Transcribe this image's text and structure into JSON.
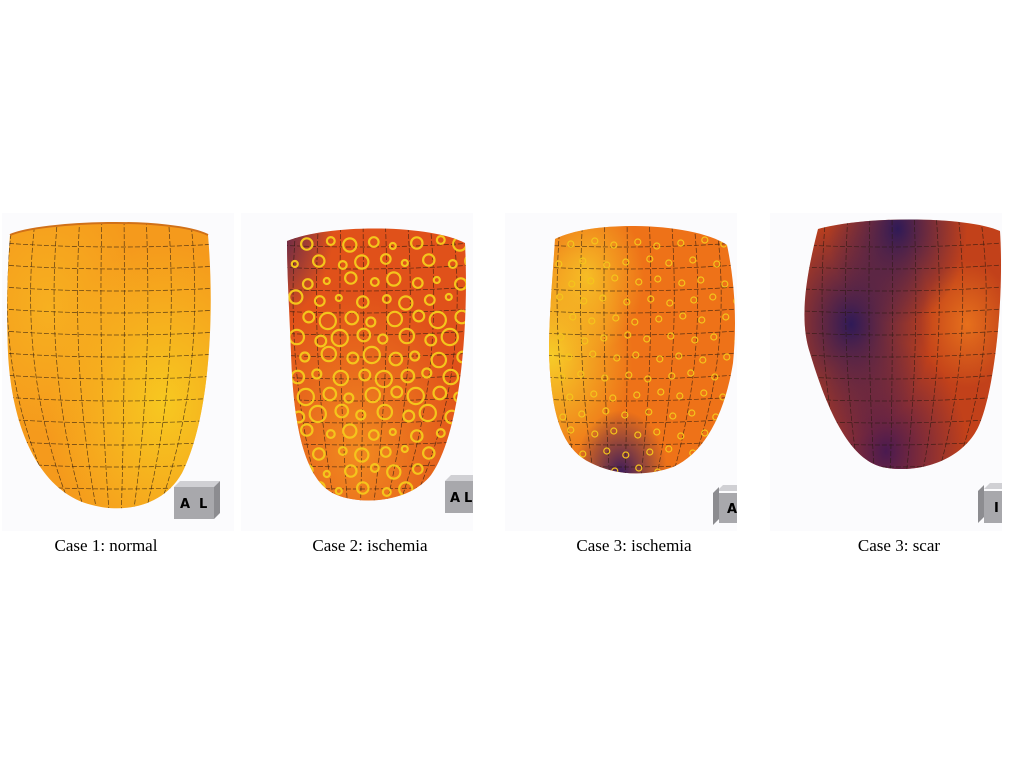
{
  "panels": [
    {
      "caption": "Case 1: normal",
      "orientation_labels": [
        "A",
        "L"
      ],
      "palette": {
        "base": "#f59a1c",
        "light": "#f7c820",
        "dark": "#3a1a5c",
        "ring": "#f4c51c"
      }
    },
    {
      "caption": "Case 2: ischemia",
      "orientation_labels": [
        "A",
        "L"
      ],
      "palette": {
        "base": "#e0511a",
        "light": "#f28a20",
        "dark": "#3a1a5c",
        "ring": "#f4c51c"
      }
    },
    {
      "caption": "Case 3: ischemia",
      "orientation_labels": [
        "A"
      ],
      "palette": {
        "base": "#ee7218",
        "light": "#f7cc28",
        "dark": "#3a1a5c",
        "ring": "#f4c51c"
      }
    },
    {
      "caption": "Case 3: scar",
      "orientation_labels": [
        "I"
      ],
      "palette": {
        "base": "#c2411a",
        "light": "#e6701c",
        "dark": "#2f1a57",
        "ring": "#f4c51c"
      }
    }
  ]
}
